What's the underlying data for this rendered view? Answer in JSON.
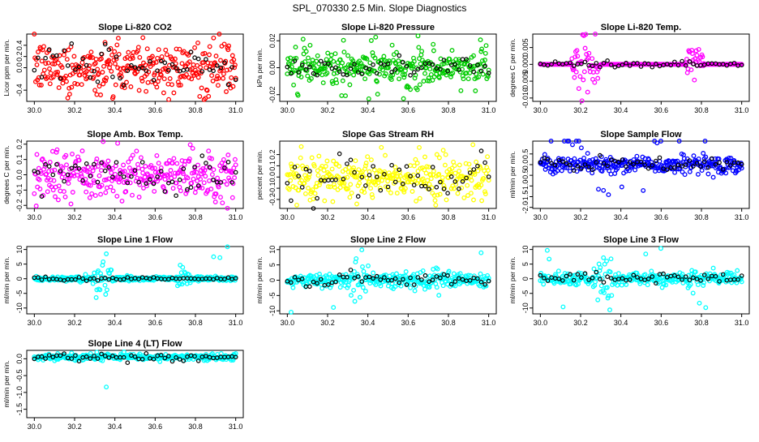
{
  "title": "SPL_070330  2.5 Min. Slope Diagnostics",
  "colors": {
    "red": "#ff0000",
    "green": "#00cc00",
    "magenta": "#ff00ff",
    "yellow": "#ffff00",
    "blue": "#0000ff",
    "cyan": "#00ffff",
    "black": "#000000"
  },
  "chart_data": [
    {
      "type": "scatter",
      "title": "Slope Li-820 CO2",
      "ylabel": "Licor ppm per min.",
      "xlim": [
        30.0,
        31.0
      ],
      "ylim": [
        -0.6,
        0.6
      ],
      "xticks": [
        "30.0",
        "30.2",
        "30.4",
        "30.6",
        "30.8",
        "31.0"
      ],
      "yticks": [
        "-0.4",
        "0.0",
        "0.2",
        "0.4"
      ],
      "ytick_values": [
        -0.4,
        0,
        0.2,
        0.4
      ],
      "color": "red",
      "spread": 0.22,
      "outlier_chance": 0.05,
      "black_spread": 0.18
    },
    {
      "type": "scatter",
      "title": "Slope Li-820 Pressure",
      "ylabel": "kPa per min.",
      "xlim": [
        30.0,
        31.0
      ],
      "ylim": [
        -0.025,
        0.025
      ],
      "xticks": [
        "30.0",
        "30.2",
        "30.4",
        "30.6",
        "30.8",
        "31.0"
      ],
      "yticks": [
        "-0.02",
        "0.00",
        "0.02"
      ],
      "ytick_values": [
        -0.02,
        0,
        0.02
      ],
      "color": "green",
      "spread": 0.006,
      "outlier_chance": 0.08,
      "black_spread": 0.003
    },
    {
      "type": "scatter",
      "title": "Slope Li-820 Temp.",
      "ylabel": "degrees C per min.",
      "xlim": [
        30.0,
        31.0
      ],
      "ylim": [
        -0.011,
        0.009
      ],
      "xticks": [
        "30.0",
        "30.2",
        "30.4",
        "30.6",
        "30.8",
        "31.0"
      ],
      "yticks": [
        "-0.010",
        "-0.005",
        "0.000",
        "0.005"
      ],
      "ytick_values": [
        -0.01,
        -0.005,
        0,
        0.005
      ],
      "color": "magenta",
      "spread": 0.0,
      "bursts": [
        [
          30.15,
          30.3,
          0.006
        ],
        [
          30.72,
          30.82,
          0.004
        ]
      ],
      "outlier_chance": 0.0,
      "black_spread": 0.0005
    },
    {
      "type": "scatter",
      "title": "Slope Amb. Box Temp.",
      "ylabel": "degrees C per min.",
      "xlim": [
        30.0,
        31.0
      ],
      "ylim": [
        -0.22,
        0.22
      ],
      "xticks": [
        "30.0",
        "30.2",
        "30.4",
        "30.6",
        "30.8",
        "31.0"
      ],
      "yticks": [
        "-0.2",
        "-0.1",
        "0.0",
        "0.1",
        "0.2"
      ],
      "ytick_values": [
        -0.2,
        -0.1,
        0,
        0.1,
        0.2
      ],
      "color": "magenta",
      "spread": 0.07,
      "outlier_chance": 0.05,
      "black_spread": 0.06
    },
    {
      "type": "scatter",
      "title": "Slope Gas Stream RH",
      "ylabel": "percent per min.",
      "xlim": [
        30.0,
        31.0
      ],
      "ylim": [
        -0.28,
        0.32
      ],
      "xticks": [
        "30.0",
        "30.2",
        "30.4",
        "30.6",
        "30.8",
        "31.0"
      ],
      "yticks": [
        "-0.2",
        "-0.1",
        "0.0",
        "0.1",
        "0.2"
      ],
      "ytick_values": [
        -0.2,
        -0.1,
        0,
        0.1,
        0.2
      ],
      "color": "yellow",
      "spread": 0.09,
      "outlier_chance": 0.04,
      "black_spread": 0.09
    },
    {
      "type": "scatter",
      "title": "Slope Sample Flow",
      "ylabel": "ml/min per min.",
      "xlim": [
        30.0,
        31.0
      ],
      "ylim": [
        -2.05,
        1.1
      ],
      "xticks": [
        "30.0",
        "30.2",
        "30.4",
        "30.6",
        "30.8",
        "31.0"
      ],
      "yticks": [
        "-2.0",
        "-1.5",
        "-1.0",
        "-0.5",
        "0.0",
        "0.5"
      ],
      "ytick_values": [
        -2,
        -1.5,
        -1,
        -0.5,
        0,
        0.5
      ],
      "color": "blue",
      "spread": 0.2,
      "outlier_chance": 0.04,
      "black_spread": 0.18
    },
    {
      "type": "scatter",
      "title": "Slope Line 1 Flow",
      "ylabel": "ml/min per min.",
      "xlim": [
        30.0,
        31.0
      ],
      "ylim": [
        -12,
        11
      ],
      "xticks": [
        "30.0",
        "30.2",
        "30.4",
        "30.6",
        "30.8",
        "31.0"
      ],
      "yticks": [
        "-10",
        "-5",
        "0",
        "5",
        "10"
      ],
      "ytick_values": [
        -10,
        -5,
        0,
        5,
        10
      ],
      "color": "cyan",
      "spread": 0.4,
      "bursts": [
        [
          30.28,
          30.4,
          4
        ],
        [
          30.7,
          30.78,
          3
        ]
      ],
      "outlier_chance": 0.01,
      "black_spread": 0.3
    },
    {
      "type": "scatter",
      "title": "Slope Line 2 Flow",
      "ylabel": "ml/min per min.",
      "xlim": [
        30.0,
        31.0
      ],
      "ylim": [
        -11,
        11
      ],
      "xticks": [
        "30.0",
        "30.2",
        "30.4",
        "30.6",
        "30.8",
        "31.0"
      ],
      "yticks": [
        "-10",
        "-5",
        "0",
        "5",
        "10"
      ],
      "ytick_values": [
        -10,
        -5,
        0,
        5,
        10
      ],
      "color": "cyan",
      "spread": 1.2,
      "bursts": [
        [
          30.28,
          30.42,
          4
        ],
        [
          30.7,
          30.78,
          3
        ]
      ],
      "outlier_chance": 0.01,
      "black_spread": 1.2
    },
    {
      "type": "scatter",
      "title": "Slope Line 3 Flow",
      "ylabel": "ml/min per min.",
      "xlim": [
        30.0,
        31.0
      ],
      "ylim": [
        -12,
        11
      ],
      "xticks": [
        "30.0",
        "30.2",
        "30.4",
        "30.6",
        "30.8",
        "31.0"
      ],
      "yticks": [
        "-10",
        "-5",
        "0",
        "5",
        "10"
      ],
      "ytick_values": [
        -10,
        -5,
        0,
        5,
        10
      ],
      "color": "cyan",
      "spread": 1.0,
      "bursts": [
        [
          30.25,
          30.4,
          5
        ],
        [
          30.72,
          30.78,
          4
        ]
      ],
      "outlier_chance": 0.01,
      "black_spread": 1.0
    },
    {
      "type": "scatter",
      "title": "Slope Line 4 (LT) Flow",
      "ylabel": "ml/min per min.",
      "xlim": [
        30.0,
        31.0
      ],
      "ylim": [
        -1.75,
        0.25
      ],
      "xticks": [
        "30.0",
        "30.2",
        "30.4",
        "30.6",
        "30.8",
        "31.0"
      ],
      "yticks": [
        "-1.5",
        "-1.0",
        "-0.5",
        "0.0"
      ],
      "ytick_values": [
        -1.5,
        -1,
        -0.5,
        0
      ],
      "color": "cyan",
      "spread": 0.05,
      "center": 0.05,
      "outlier_chance": 0.005,
      "black_spread": 0.06
    }
  ]
}
